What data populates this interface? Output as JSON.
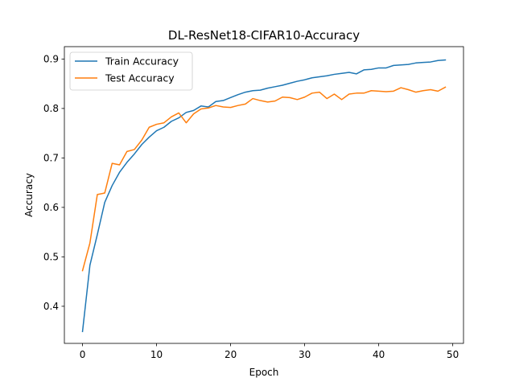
{
  "chart_data": {
    "type": "line",
    "title": "DL-ResNet18-CIFAR10-Accuracy",
    "xlabel": "Epoch",
    "ylabel": "Accuracy",
    "xlim": [
      -2.45,
      51.45
    ],
    "ylim": [
      0.325,
      0.925
    ],
    "xticks": [
      0,
      10,
      20,
      30,
      40,
      50
    ],
    "yticks": [
      0.4,
      0.5,
      0.6,
      0.7,
      0.8,
      0.9
    ],
    "xtick_labels": [
      "0",
      "10",
      "20",
      "30",
      "40",
      "50"
    ],
    "ytick_labels": [
      "0.4",
      "0.5",
      "0.6",
      "0.7",
      "0.8",
      "0.9"
    ],
    "legend_position": "top-left",
    "grid": false,
    "x": [
      0,
      1,
      2,
      3,
      4,
      5,
      6,
      7,
      8,
      9,
      10,
      11,
      12,
      13,
      14,
      15,
      16,
      17,
      18,
      19,
      20,
      21,
      22,
      23,
      24,
      25,
      26,
      27,
      28,
      29,
      30,
      31,
      32,
      33,
      34,
      35,
      36,
      37,
      38,
      39,
      40,
      41,
      42,
      43,
      44,
      45,
      46,
      47,
      48,
      49
    ],
    "series": [
      {
        "name": "Train Accuracy",
        "color": "#1f77b4",
        "values": [
          0.349,
          0.483,
          0.545,
          0.61,
          0.644,
          0.671,
          0.691,
          0.708,
          0.727,
          0.742,
          0.755,
          0.762,
          0.774,
          0.781,
          0.792,
          0.796,
          0.805,
          0.803,
          0.814,
          0.816,
          0.822,
          0.828,
          0.833,
          0.836,
          0.837,
          0.841,
          0.844,
          0.847,
          0.851,
          0.855,
          0.858,
          0.862,
          0.864,
          0.866,
          0.869,
          0.871,
          0.873,
          0.87,
          0.878,
          0.879,
          0.882,
          0.882,
          0.887,
          0.888,
          0.889,
          0.892,
          0.893,
          0.894,
          0.897,
          0.898
        ]
      },
      {
        "name": "Test Accuracy",
        "color": "#ff7f0e",
        "values": [
          0.472,
          0.528,
          0.626,
          0.629,
          0.689,
          0.686,
          0.713,
          0.717,
          0.736,
          0.762,
          0.768,
          0.771,
          0.783,
          0.791,
          0.771,
          0.789,
          0.799,
          0.801,
          0.806,
          0.803,
          0.802,
          0.806,
          0.809,
          0.82,
          0.816,
          0.813,
          0.815,
          0.823,
          0.822,
          0.818,
          0.823,
          0.831,
          0.833,
          0.82,
          0.829,
          0.818,
          0.829,
          0.831,
          0.831,
          0.836,
          0.835,
          0.834,
          0.835,
          0.842,
          0.838,
          0.833,
          0.836,
          0.838,
          0.835,
          0.843
        ]
      }
    ]
  }
}
